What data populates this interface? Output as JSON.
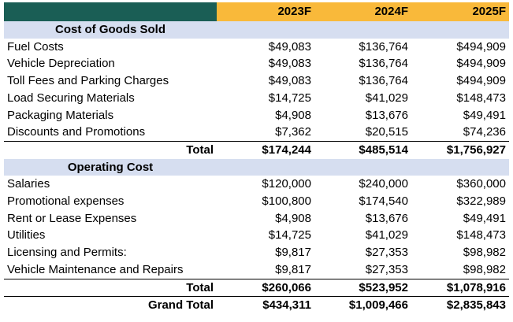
{
  "columns": [
    "2023F",
    "2024F",
    "2025F"
  ],
  "cogs": {
    "title": "Cost of Goods Sold",
    "rows": [
      {
        "label": "Fuel Costs",
        "values": [
          "$49,083",
          "$136,764",
          "$494,909"
        ]
      },
      {
        "label": "Vehicle Depreciation",
        "values": [
          "$49,083",
          "$136,764",
          "$494,909"
        ]
      },
      {
        "label": "Toll Fees and Parking Charges",
        "values": [
          "$49,083",
          "$136,764",
          "$494,909"
        ]
      },
      {
        "label": "Load Securing Materials",
        "values": [
          "$14,725",
          "$41,029",
          "$148,473"
        ]
      },
      {
        "label": "Packaging Materials",
        "values": [
          "$4,908",
          "$13,676",
          "$49,491"
        ]
      },
      {
        "label": "Discounts and Promotions",
        "values": [
          "$7,362",
          "$20,515",
          "$74,236"
        ]
      }
    ],
    "total": {
      "label": "Total",
      "values": [
        "$174,244",
        "$485,514",
        "$1,756,927"
      ]
    }
  },
  "opex": {
    "title": "Operating Cost",
    "rows": [
      {
        "label": "Salaries",
        "values": [
          "$120,000",
          "$240,000",
          "$360,000"
        ]
      },
      {
        "label": "Promotional expenses",
        "values": [
          "$100,800",
          "$174,540",
          "$322,989"
        ]
      },
      {
        "label": "Rent or Lease Expenses",
        "values": [
          "$4,908",
          "$13,676",
          "$49,491"
        ]
      },
      {
        "label": "Utilities",
        "values": [
          "$14,725",
          "$41,029",
          "$148,473"
        ]
      },
      {
        "label": "Licensing and Permits:",
        "values": [
          "$9,817",
          "$27,353",
          "$98,982"
        ]
      },
      {
        "label": "Vehicle Maintenance and Repairs",
        "values": [
          "$9,817",
          "$27,353",
          "$98,982"
        ]
      }
    ],
    "total": {
      "label": "Total",
      "values": [
        "$260,066",
        "$523,952",
        "$1,078,916"
      ]
    }
  },
  "grand_total": {
    "label": "Grand Total",
    "values": [
      "$434,311",
      "$1,009,466",
      "$2,835,843"
    ]
  },
  "colors": {
    "header_corner": "#1a5e55",
    "header_year": "#f9b93a",
    "section_band": "#d6def0"
  }
}
